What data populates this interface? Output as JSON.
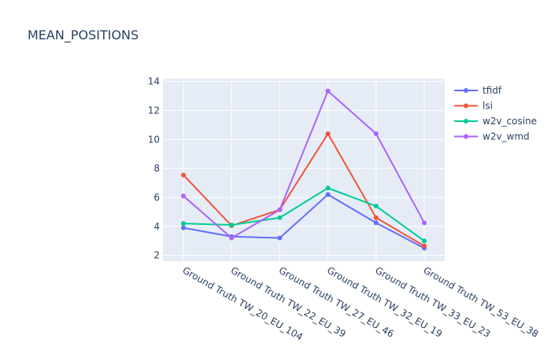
{
  "chart_data": {
    "type": "line",
    "title": "MEAN_POSITIONS",
    "xlabel": "",
    "ylabel": "",
    "ylim": [
      1.6,
      14.2
    ],
    "yticks": [
      2,
      4,
      6,
      8,
      10,
      12,
      14
    ],
    "grid": true,
    "legend_position": "right",
    "categories": [
      "Ground Truth TW_20_EU_104",
      "Ground Truth TW_22_EU_39",
      "Ground Truth TW_27_EU_46",
      "Ground Truth TW_32_EU_19",
      "Ground Truth TW_33_EU_23",
      "Ground Truth TW_53_EU_38"
    ],
    "series": [
      {
        "name": "tfidf",
        "color": "#636efa",
        "values": [
          3.9,
          3.3,
          3.2,
          6.2,
          4.25,
          2.5
        ]
      },
      {
        "name": "lsi",
        "color": "#ef553b",
        "values": [
          7.55,
          4.05,
          5.15,
          10.4,
          4.6,
          2.65
        ]
      },
      {
        "name": "w2v_cosine",
        "color": "#00cc96",
        "values": [
          4.2,
          4.1,
          4.6,
          6.65,
          5.4,
          3.0
        ]
      },
      {
        "name": "w2v_wmd",
        "color": "#ab63fa",
        "values": [
          6.1,
          3.2,
          5.15,
          13.35,
          10.4,
          4.25
        ]
      }
    ]
  }
}
